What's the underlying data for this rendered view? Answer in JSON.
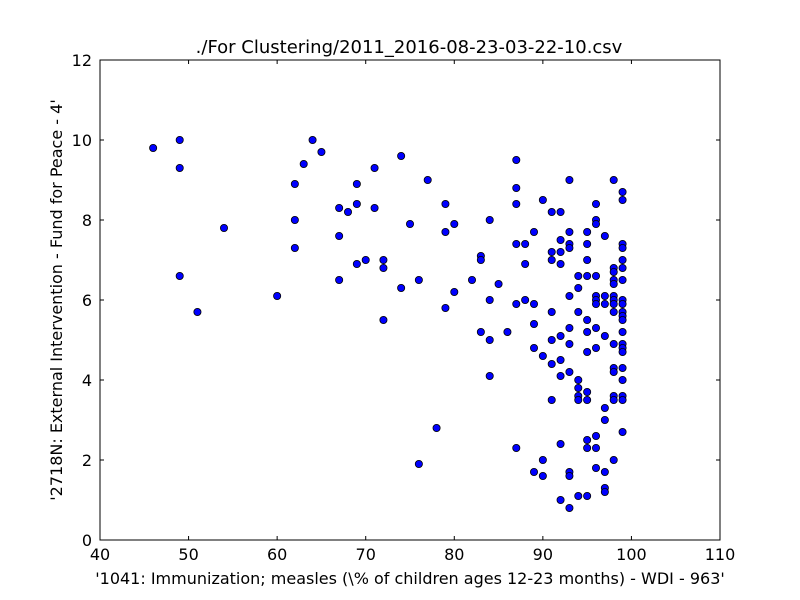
{
  "chart_data": {
    "type": "scatter",
    "title": "./For Clustering/2011_2016-08-23-03-22-10.csv",
    "xlabel": "'1041: Immunization; measles  (\\% of children ages 12-23 months) - WDI - 963'",
    "ylabel": "'2718N: External Intervention - Fund for Peace - 4'",
    "xlim": [
      40,
      110
    ],
    "ylim": [
      0,
      12
    ],
    "xticks": [
      40,
      50,
      60,
      70,
      80,
      90,
      100,
      110
    ],
    "yticks": [
      0,
      2,
      4,
      6,
      8,
      10,
      12
    ],
    "grid": false,
    "marker_color": "#0000ff",
    "marker_edge": "#000000",
    "points": [
      [
        46,
        9.8
      ],
      [
        49,
        10.0
      ],
      [
        49,
        9.3
      ],
      [
        49,
        6.6
      ],
      [
        51,
        5.7
      ],
      [
        54,
        7.8
      ],
      [
        60,
        6.1
      ],
      [
        62,
        8.9
      ],
      [
        62,
        8.0
      ],
      [
        62,
        7.3
      ],
      [
        63,
        9.4
      ],
      [
        64,
        10.0
      ],
      [
        65,
        9.7
      ],
      [
        67,
        8.3
      ],
      [
        67,
        7.6
      ],
      [
        67,
        6.5
      ],
      [
        68,
        8.2
      ],
      [
        69,
        8.9
      ],
      [
        69,
        8.4
      ],
      [
        69,
        6.9
      ],
      [
        70,
        7.0
      ],
      [
        71,
        9.3
      ],
      [
        71,
        8.3
      ],
      [
        72,
        7.0
      ],
      [
        72,
        6.8
      ],
      [
        72,
        5.5
      ],
      [
        74,
        9.6
      ],
      [
        74,
        6.3
      ],
      [
        75,
        7.9
      ],
      [
        76,
        6.5
      ],
      [
        76,
        1.9
      ],
      [
        77,
        9.0
      ],
      [
        78,
        2.8
      ],
      [
        79,
        8.4
      ],
      [
        79,
        7.7
      ],
      [
        79,
        5.8
      ],
      [
        80,
        7.9
      ],
      [
        80,
        6.2
      ],
      [
        82,
        6.5
      ],
      [
        83,
        7.1
      ],
      [
        83,
        7.0
      ],
      [
        83,
        5.2
      ],
      [
        84,
        8.0
      ],
      [
        84,
        6.0
      ],
      [
        84,
        5.0
      ],
      [
        84,
        4.1
      ],
      [
        85,
        6.4
      ],
      [
        86,
        5.2
      ],
      [
        87,
        9.5
      ],
      [
        87,
        8.8
      ],
      [
        87,
        8.4
      ],
      [
        87,
        7.4
      ],
      [
        87,
        5.9
      ],
      [
        87,
        2.3
      ],
      [
        88,
        7.4
      ],
      [
        88,
        6.9
      ],
      [
        88,
        6.0
      ],
      [
        89,
        7.7
      ],
      [
        89,
        5.9
      ],
      [
        89,
        5.4
      ],
      [
        89,
        4.8
      ],
      [
        89,
        1.7
      ],
      [
        90,
        8.5
      ],
      [
        90,
        4.6
      ],
      [
        90,
        2.0
      ],
      [
        90,
        1.6
      ],
      [
        91,
        8.2
      ],
      [
        91,
        7.2
      ],
      [
        91,
        7.0
      ],
      [
        91,
        5.7
      ],
      [
        91,
        5.0
      ],
      [
        91,
        4.4
      ],
      [
        91,
        3.5
      ],
      [
        92,
        8.2
      ],
      [
        92,
        7.5
      ],
      [
        92,
        7.2
      ],
      [
        92,
        6.9
      ],
      [
        92,
        5.1
      ],
      [
        92,
        4.5
      ],
      [
        92,
        4.1
      ],
      [
        92,
        2.4
      ],
      [
        92,
        1.0
      ],
      [
        93,
        9.0
      ],
      [
        93,
        7.7
      ],
      [
        93,
        7.4
      ],
      [
        93,
        7.3
      ],
      [
        93,
        6.1
      ],
      [
        93,
        5.3
      ],
      [
        93,
        4.9
      ],
      [
        93,
        4.2
      ],
      [
        93,
        1.7
      ],
      [
        93,
        1.6
      ],
      [
        93,
        0.8
      ],
      [
        94,
        6.6
      ],
      [
        94,
        6.3
      ],
      [
        94,
        5.7
      ],
      [
        94,
        4.0
      ],
      [
        94,
        3.8
      ],
      [
        94,
        3.6
      ],
      [
        94,
        3.5
      ],
      [
        94,
        1.1
      ],
      [
        95,
        7.7
      ],
      [
        95,
        7.4
      ],
      [
        95,
        7.0
      ],
      [
        95,
        6.6
      ],
      [
        95,
        5.5
      ],
      [
        95,
        5.2
      ],
      [
        95,
        4.7
      ],
      [
        95,
        3.7
      ],
      [
        95,
        3.5
      ],
      [
        95,
        2.5
      ],
      [
        95,
        2.3
      ],
      [
        95,
        1.1
      ],
      [
        96,
        8.4
      ],
      [
        96,
        8.0
      ],
      [
        96,
        7.9
      ],
      [
        96,
        6.6
      ],
      [
        96,
        6.1
      ],
      [
        96,
        6.0
      ],
      [
        96,
        5.9
      ],
      [
        96,
        5.3
      ],
      [
        96,
        4.8
      ],
      [
        96,
        2.6
      ],
      [
        96,
        2.3
      ],
      [
        96,
        1.8
      ],
      [
        97,
        7.6
      ],
      [
        97,
        6.1
      ],
      [
        97,
        5.9
      ],
      [
        97,
        5.1
      ],
      [
        97,
        3.3
      ],
      [
        97,
        3.0
      ],
      [
        97,
        1.7
      ],
      [
        97,
        1.3
      ],
      [
        97,
        1.2
      ],
      [
        98,
        9.0
      ],
      [
        98,
        6.8
      ],
      [
        98,
        6.7
      ],
      [
        98,
        6.5
      ],
      [
        98,
        6.4
      ],
      [
        98,
        6.1
      ],
      [
        98,
        6.0
      ],
      [
        98,
        5.9
      ],
      [
        98,
        5.7
      ],
      [
        98,
        4.9
      ],
      [
        98,
        4.3
      ],
      [
        98,
        4.2
      ],
      [
        98,
        3.6
      ],
      [
        98,
        3.5
      ],
      [
        98,
        2.0
      ],
      [
        99,
        8.7
      ],
      [
        99,
        8.5
      ],
      [
        99,
        7.4
      ],
      [
        99,
        7.3
      ],
      [
        99,
        7.0
      ],
      [
        99,
        6.8
      ],
      [
        99,
        6.5
      ],
      [
        99,
        6.0
      ],
      [
        99,
        5.9
      ],
      [
        99,
        5.7
      ],
      [
        99,
        5.6
      ],
      [
        99,
        5.5
      ],
      [
        99,
        5.2
      ],
      [
        99,
        4.9
      ],
      [
        99,
        4.8
      ],
      [
        99,
        4.7
      ],
      [
        99,
        4.3
      ],
      [
        99,
        4.0
      ],
      [
        99,
        3.6
      ],
      [
        99,
        3.5
      ],
      [
        99,
        2.7
      ]
    ]
  }
}
